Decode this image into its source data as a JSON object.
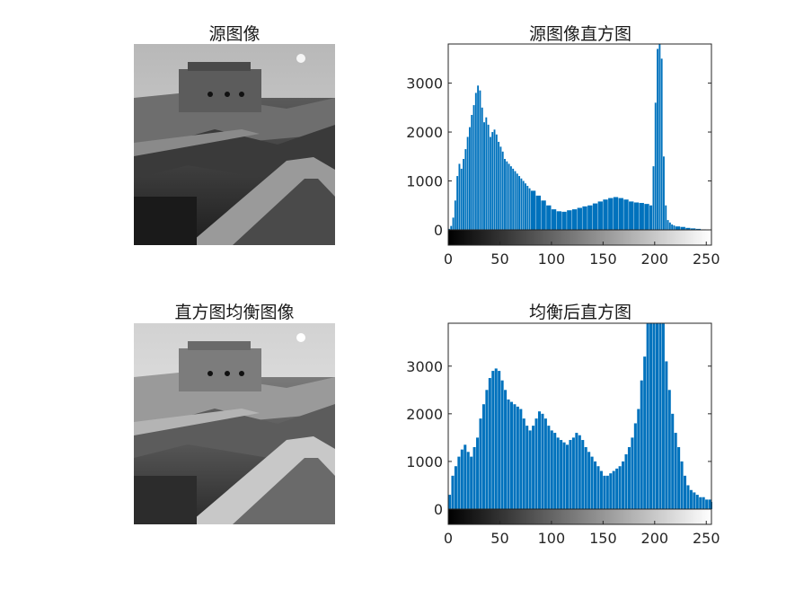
{
  "titles": {
    "source_image": "源图像",
    "source_hist": "源图像直方图",
    "equalized_image": "直方图均衡图像",
    "equalized_hist": "均衡后直方图"
  },
  "colors": {
    "bar": "#0072BD",
    "axis": "#262626",
    "sky_src": "#c9c9c9",
    "sky_eq": "#d6d6d6"
  },
  "chart_data": [
    {
      "type": "bar",
      "title": "源图像直方图",
      "xlabel": "",
      "ylabel": "",
      "xlim": [
        0,
        255
      ],
      "ylim": [
        0,
        3800
      ],
      "xticks": [
        "0",
        "50",
        "100",
        "150",
        "200",
        "250"
      ],
      "yticks": [
        "0",
        "1000",
        "2000",
        "3000"
      ],
      "colorbar": "grayscale 0-255 below x-axis",
      "grid": false,
      "bins": [
        0,
        2,
        4,
        6,
        8,
        10,
        12,
        14,
        16,
        18,
        20,
        22,
        24,
        26,
        28,
        30,
        32,
        34,
        36,
        38,
        40,
        42,
        44,
        46,
        48,
        50,
        52,
        54,
        56,
        58,
        60,
        62,
        64,
        66,
        68,
        70,
        72,
        74,
        76,
        78,
        80,
        85,
        90,
        95,
        100,
        105,
        110,
        115,
        120,
        125,
        130,
        135,
        140,
        145,
        150,
        155,
        160,
        165,
        170,
        175,
        180,
        185,
        190,
        195,
        198,
        200,
        202,
        204,
        206,
        208,
        210,
        212,
        214,
        216,
        218,
        220,
        225,
        230,
        235,
        240,
        245,
        250,
        255
      ],
      "values": [
        20,
        80,
        250,
        600,
        1100,
        1350,
        1250,
        1450,
        1650,
        1900,
        2100,
        2350,
        2550,
        2800,
        2950,
        2850,
        2500,
        2200,
        2300,
        2150,
        1900,
        2000,
        2050,
        1950,
        1800,
        1700,
        1600,
        1450,
        1400,
        1350,
        1300,
        1250,
        1200,
        1150,
        1100,
        1050,
        1000,
        950,
        900,
        850,
        800,
        700,
        600,
        500,
        420,
        380,
        370,
        400,
        420,
        450,
        480,
        500,
        540,
        580,
        620,
        650,
        670,
        650,
        620,
        580,
        560,
        550,
        530,
        500,
        1300,
        2600,
        3700,
        3800,
        3500,
        1500,
        500,
        200,
        150,
        110,
        90,
        70,
        60,
        40,
        30,
        20,
        10,
        5,
        0
      ]
    },
    {
      "type": "bar",
      "title": "均衡后直方图",
      "xlabel": "",
      "ylabel": "",
      "xlim": [
        0,
        255
      ],
      "ylim": [
        0,
        3900
      ],
      "xticks": [
        "0",
        "50",
        "100",
        "150",
        "200",
        "250"
      ],
      "yticks": [
        "0",
        "1000",
        "2000",
        "3000"
      ],
      "colorbar": "grayscale 0-255 below x-axis",
      "grid": false,
      "bins": [
        0,
        3,
        6,
        9,
        12,
        15,
        18,
        21,
        24,
        27,
        30,
        33,
        36,
        39,
        42,
        45,
        48,
        51,
        54,
        57,
        60,
        63,
        66,
        69,
        72,
        75,
        78,
        81,
        84,
        87,
        90,
        93,
        96,
        99,
        102,
        105,
        108,
        111,
        114,
        117,
        120,
        123,
        126,
        129,
        132,
        135,
        138,
        141,
        144,
        147,
        150,
        153,
        156,
        159,
        162,
        165,
        168,
        171,
        174,
        177,
        180,
        183,
        186,
        189,
        192,
        195,
        198,
        201,
        204,
        207,
        210,
        213,
        216,
        219,
        222,
        225,
        228,
        231,
        234,
        237,
        240,
        243,
        246,
        249,
        252,
        255
      ],
      "values": [
        300,
        700,
        900,
        1100,
        1250,
        1350,
        1200,
        1100,
        1300,
        1500,
        1900,
        2200,
        2500,
        2750,
        2900,
        2950,
        2900,
        2700,
        2500,
        2300,
        2250,
        2200,
        2150,
        2100,
        1900,
        1750,
        1650,
        1750,
        1900,
        2050,
        2000,
        1900,
        1750,
        1650,
        1600,
        1500,
        1450,
        1400,
        1350,
        1450,
        1500,
        1600,
        1550,
        1450,
        1300,
        1200,
        1100,
        1000,
        900,
        800,
        700,
        700,
        750,
        800,
        850,
        900,
        1000,
        1150,
        1300,
        1500,
        1800,
        2100,
        2700,
        3200,
        4100,
        4000,
        4100,
        4100,
        4100,
        3900,
        3100,
        2500,
        2000,
        1600,
        1300,
        1000,
        700,
        500,
        400,
        350,
        300,
        250,
        250,
        200,
        200,
        150
      ]
    }
  ]
}
